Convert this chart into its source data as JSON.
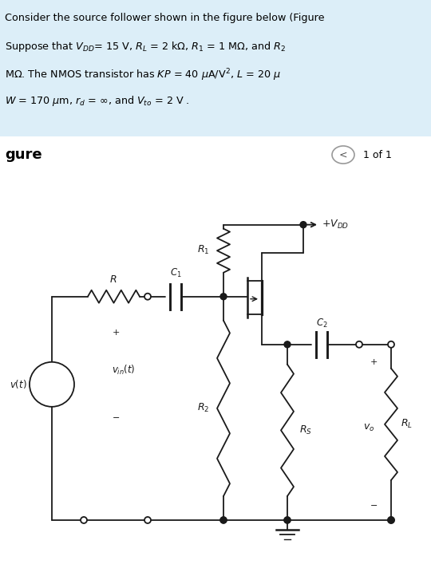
{
  "header_bg": "#dceef8",
  "nav_bg": "#ffffff",
  "circuit_bg": "#ffffff",
  "lw": 1.3,
  "lc": "#1a1a1a"
}
